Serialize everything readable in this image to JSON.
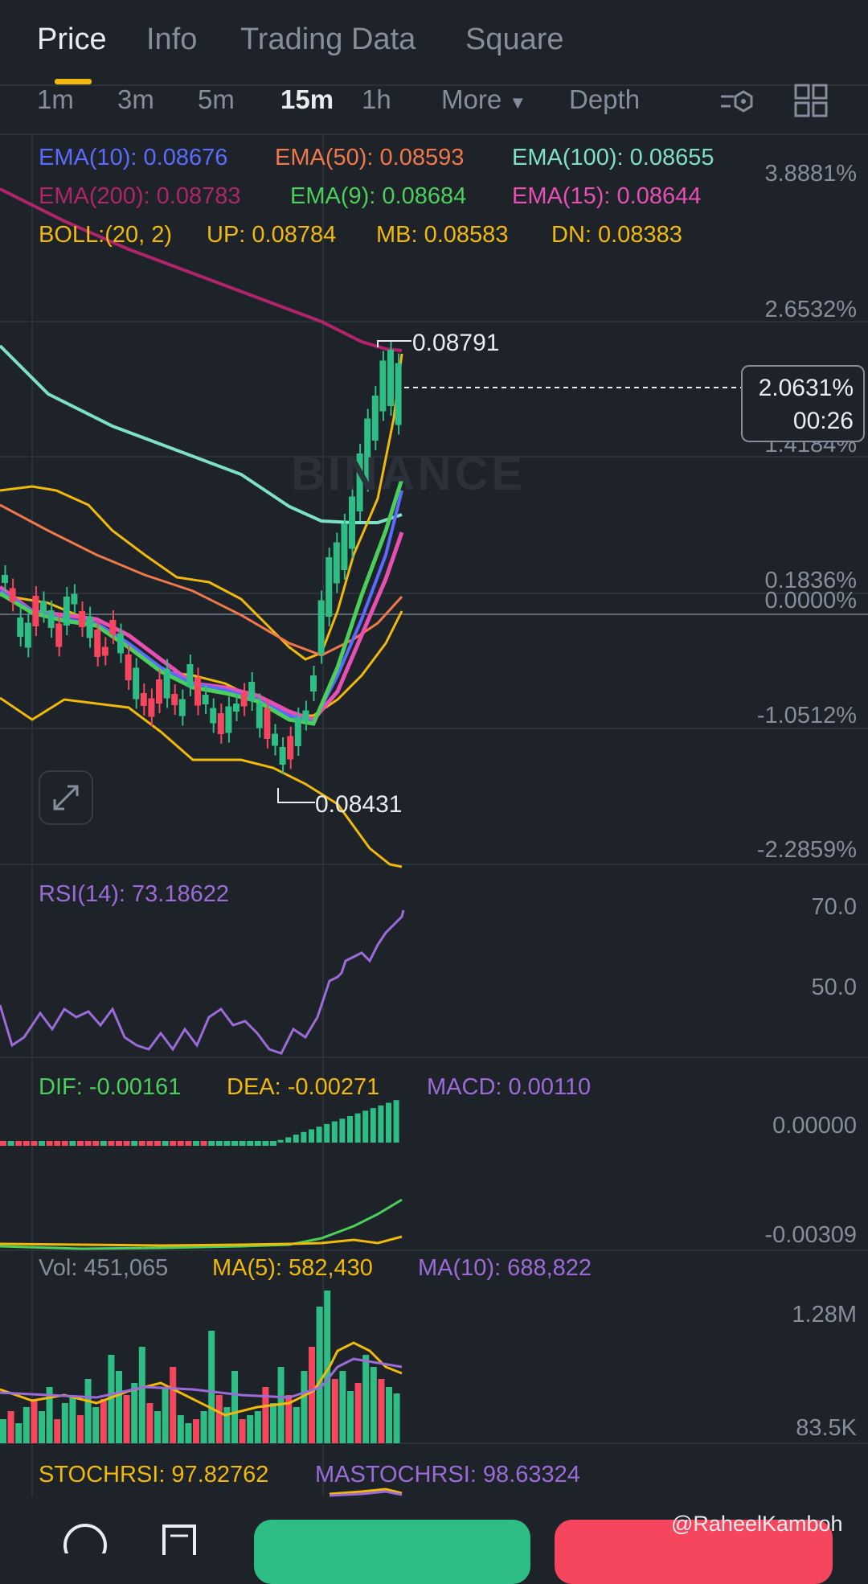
{
  "tabs": [
    "Price",
    "Info",
    "Trading Data",
    "Square"
  ],
  "intervals": [
    "1m",
    "3m",
    "5m",
    "15m",
    "1h"
  ],
  "more_label": "More",
  "depth_label": "Depth",
  "ema": {
    "ema10": "EMA(10): 0.08676",
    "ema50": "EMA(50): 0.08593",
    "ema100": "EMA(100): 0.08655",
    "ema200": "EMA(200): 0.08783",
    "ema9": "EMA(9): 0.08684",
    "ema15": "EMA(15): 0.08644"
  },
  "boll": {
    "label": "BOLL:(20, 2)",
    "up": "UP: 0.08784",
    "mb": "MB: 0.08583",
    "dn": "DN: 0.08383"
  },
  "price_axis": [
    "3.8881%",
    "2.6532%",
    "1.4184%",
    "0.1836%",
    "0.0000%",
    "-1.0512%",
    "-2.2859%"
  ],
  "current": {
    "pct": "2.0631%",
    "countdown": "00:26"
  },
  "high_label": "0.08791",
  "low_label": "0.08431",
  "watermark": "BINANCE",
  "rsi": {
    "label": "RSI(14): 73.18622",
    "axis": [
      "70.0",
      "50.0"
    ]
  },
  "macd": {
    "dif": "DIF: -0.00161",
    "dea": "DEA: -0.00271",
    "macd": "MACD: 0.00110",
    "axis": [
      "0.00000",
      "-0.00309"
    ]
  },
  "volume": {
    "vol": "Vol: 451,065",
    "ma5": "MA(5): 582,430",
    "ma10": "MA(10): 688,822",
    "axis": [
      "1.28M",
      "83.5K"
    ]
  },
  "stochrsi": {
    "stoch": "STOCHRSI: 97.82762",
    "ma": "MASTOCHRSI: 98.63324"
  },
  "credit": "@RaheelKamboh",
  "colors": {
    "up": "#2ebd85",
    "down": "#f6465d",
    "ema10": "#5c6bff",
    "ema50": "#f0784a",
    "ema100": "#7fe0c8",
    "ema200": "#b0246a",
    "ema9": "#4ccf5a",
    "ema15": "#e84fb3",
    "boll": "#f0b90b",
    "rsi": "#9b6cd8"
  }
}
